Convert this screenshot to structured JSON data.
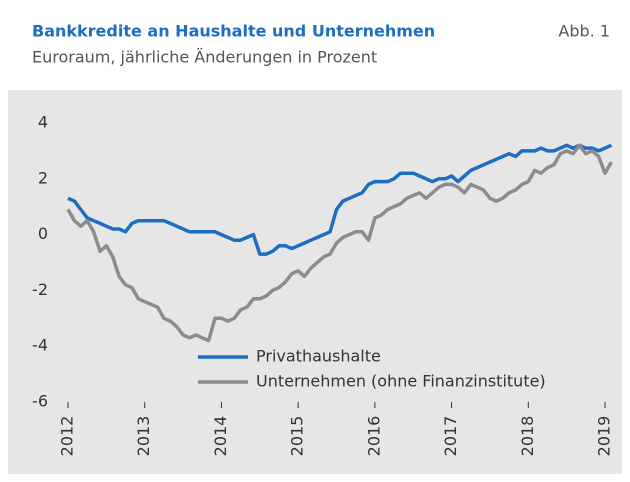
{
  "chart_data": {
    "type": "line",
    "title": "Bankkredite an Haushalte und Unternehmen",
    "figure_label": "Abb. 1",
    "subtitle": "Euroraum, jährliche Änderungen in Prozent",
    "categories": [
      "2012",
      null,
      null,
      null,
      null,
      null,
      null,
      null,
      null,
      null,
      null,
      null,
      "2013",
      null,
      null,
      null,
      null,
      null,
      null,
      null,
      null,
      null,
      null,
      null,
      "2014",
      null,
      null,
      null,
      null,
      null,
      null,
      null,
      null,
      null,
      null,
      null,
      "2015",
      null,
      null,
      null,
      null,
      null,
      null,
      null,
      null,
      null,
      null,
      null,
      "2016",
      null,
      null,
      null,
      null,
      null,
      null,
      null,
      null,
      null,
      null,
      null,
      "2017",
      null,
      null,
      null,
      null,
      null,
      null,
      null,
      null,
      null,
      null,
      null,
      "2018",
      null,
      null,
      null,
      null,
      null,
      null,
      null,
      null,
      null,
      null,
      null,
      "2019",
      null
    ],
    "series": [
      {
        "name": "Privathaushalte",
        "color": "#1b6ec2",
        "values": [
          1.3,
          1.2,
          0.9,
          0.6,
          0.5,
          0.4,
          0.3,
          0.2,
          0.2,
          0.1,
          0.4,
          0.5,
          0.5,
          0.5,
          0.5,
          0.5,
          0.4,
          0.3,
          0.2,
          0.1,
          0.1,
          0.1,
          0.1,
          0.1,
          0.0,
          -0.1,
          -0.2,
          -0.2,
          -0.1,
          0.0,
          -0.7,
          -0.7,
          -0.6,
          -0.4,
          -0.4,
          -0.5,
          -0.4,
          -0.3,
          -0.2,
          -0.1,
          0.0,
          0.1,
          0.9,
          1.2,
          1.3,
          1.4,
          1.5,
          1.8,
          1.9,
          1.9,
          1.9,
          2.0,
          2.2,
          2.2,
          2.2,
          2.1,
          2.0,
          1.9,
          2.0,
          2.0,
          2.1,
          1.9,
          2.1,
          2.3,
          2.4,
          2.5,
          2.6,
          2.7,
          2.8,
          2.9,
          2.8,
          3.0,
          3.0,
          3.0,
          3.1,
          3.0,
          3.0,
          3.1,
          3.2,
          3.1,
          3.2,
          3.1,
          3.1,
          3.0,
          3.1,
          3.2
        ]
      },
      {
        "name": "Unternehmen (ohne Finanzinstitute)",
        "color": "#8c8c8c",
        "values": [
          0.9,
          0.5,
          0.3,
          0.5,
          0.1,
          -0.6,
          -0.4,
          -0.8,
          -1.5,
          -1.8,
          -1.9,
          -2.3,
          -2.4,
          -2.5,
          -2.6,
          -3.0,
          -3.1,
          -3.3,
          -3.6,
          -3.7,
          -3.6,
          -3.7,
          -3.8,
          -3.0,
          -3.0,
          -3.1,
          -3.0,
          -2.7,
          -2.6,
          -2.3,
          -2.3,
          -2.2,
          -2.0,
          -1.9,
          -1.7,
          -1.4,
          -1.3,
          -1.5,
          -1.2,
          -1.0,
          -0.8,
          -0.7,
          -0.3,
          -0.1,
          0.0,
          0.1,
          0.1,
          -0.2,
          0.6,
          0.7,
          0.9,
          1.0,
          1.1,
          1.3,
          1.4,
          1.5,
          1.3,
          1.5,
          1.7,
          1.8,
          1.8,
          1.7,
          1.5,
          1.8,
          1.7,
          1.6,
          1.3,
          1.2,
          1.3,
          1.5,
          1.6,
          1.8,
          1.9,
          2.3,
          2.2,
          2.4,
          2.5,
          2.9,
          3.0,
          2.9,
          3.2,
          2.9,
          3.0,
          2.8,
          2.2,
          2.6
        ]
      }
    ],
    "ylim": [
      -6,
      4
    ],
    "yticks": [
      -6,
      -4,
      -2,
      0,
      2,
      4
    ]
  }
}
